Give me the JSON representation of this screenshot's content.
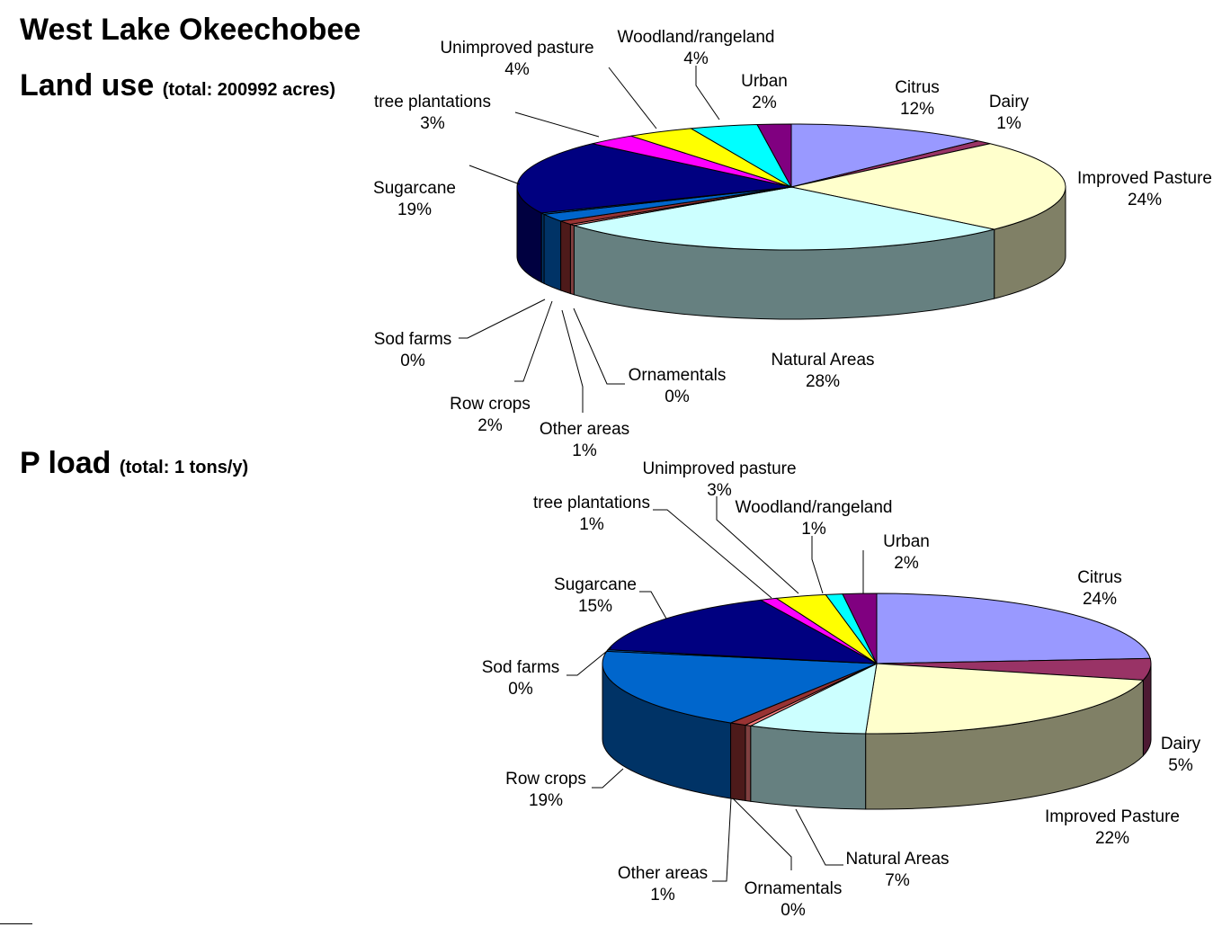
{
  "title": "West Lake Okeechobee",
  "chart_data": [
    {
      "type": "pie",
      "title": "Land use",
      "subtitle": "(total: 200992 acres)",
      "labels": [
        "Citrus",
        "Dairy",
        "Improved Pasture",
        "Natural Areas",
        "Ornamentals",
        "Other areas",
        "Row crops",
        "Sod farms",
        "Sugarcane",
        "tree plantations",
        "Unimproved pasture",
        "Woodland/rangeland",
        "Urban"
      ],
      "values": [
        12,
        1,
        24,
        28,
        0,
        1,
        2,
        0,
        19,
        3,
        4,
        4,
        2
      ],
      "value_labels": [
        "12%",
        "1%",
        "24%",
        "28%",
        "0%",
        "1%",
        "2%",
        "0%",
        "19%",
        "3%",
        "4%",
        "4%",
        "2%"
      ],
      "colors": [
        "#9999ff",
        "#993366",
        "#ffffcc",
        "#ccffff",
        "#ff8080",
        "#993333",
        "#0066cc",
        "#0066cc",
        "#000080",
        "#ff00ff",
        "#ffff00",
        "#00ffff",
        "#800080"
      ]
    },
    {
      "type": "pie",
      "title": "P load",
      "subtitle": "(total: 1 tons/y)",
      "labels": [
        "Citrus",
        "Dairy",
        "Improved Pasture",
        "Natural Areas",
        "Ornamentals",
        "Other areas",
        "Row crops",
        "Sod farms",
        "Sugarcane",
        "tree plantations",
        "Unimproved pasture",
        "Woodland/rangeland",
        "Urban"
      ],
      "values": [
        24,
        5,
        22,
        7,
        0,
        1,
        19,
        0,
        15,
        1,
        3,
        1,
        2
      ],
      "value_labels": [
        "24%",
        "5%",
        "22%",
        "7%",
        "0%",
        "1%",
        "19%",
        "0%",
        "15%",
        "1%",
        "3%",
        "1%",
        "2%"
      ],
      "colors": [
        "#9999ff",
        "#993366",
        "#ffffcc",
        "#ccffff",
        "#ff8080",
        "#993333",
        "#0066cc",
        "#0066cc",
        "#000080",
        "#ff00ff",
        "#ffff00",
        "#00ffff",
        "#800080"
      ]
    }
  ]
}
